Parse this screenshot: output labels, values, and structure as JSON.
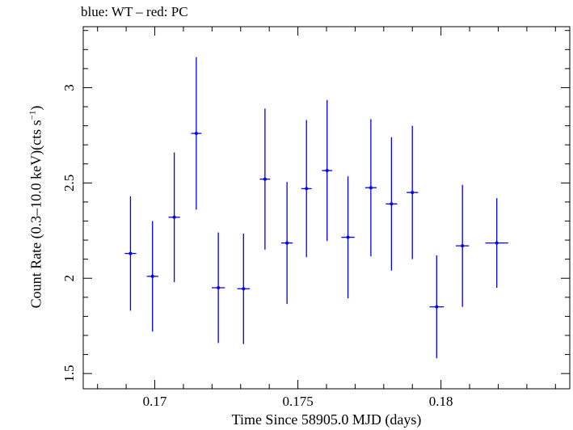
{
  "chart_data": {
    "type": "scatter",
    "title": "blue: WT – red: PC",
    "xlabel": "Time Since 58905.0 MJD (days)",
    "ylabel_main": "Count Rate (0.3–10.0 keV)(cts s",
    "ylabel_sup": "−1",
    "ylabel_end": ")",
    "xlim": [
      0.1675,
      0.1845
    ],
    "ylim": [
      1.42,
      3.32
    ],
    "xticks": [
      0.17,
      0.175,
      0.18
    ],
    "xtick_labels": [
      "0.17",
      "0.175",
      "0.18"
    ],
    "yticks": [
      1.5,
      2,
      2.5,
      3
    ],
    "ytick_labels": [
      "1.5",
      "2",
      "2.5",
      "3"
    ],
    "grid": false,
    "series": [
      {
        "color": "#0000ee",
        "points": [
          {
            "x": 0.16915,
            "xerr": 0.0002,
            "y": 2.13,
            "yerr": 0.3
          },
          {
            "x": 0.16992,
            "xerr": 0.0002,
            "y": 2.01,
            "yerr": 0.29
          },
          {
            "x": 0.17068,
            "xerr": 0.0002,
            "y": 2.32,
            "yerr": 0.34
          },
          {
            "x": 0.17145,
            "xerr": 0.00018,
            "y": 2.76,
            "yerr": 0.4
          },
          {
            "x": 0.17222,
            "xerr": 0.00023,
            "y": 1.95,
            "yerr": 0.29
          },
          {
            "x": 0.1731,
            "xerr": 0.00022,
            "y": 1.945,
            "yerr": 0.29
          },
          {
            "x": 0.17385,
            "xerr": 0.00018,
            "y": 2.52,
            "yerr": 0.37
          },
          {
            "x": 0.17462,
            "xerr": 0.0002,
            "y": 2.185,
            "yerr": 0.32
          },
          {
            "x": 0.1753,
            "xerr": 0.00018,
            "y": 2.47,
            "yerr": 0.36
          },
          {
            "x": 0.17602,
            "xerr": 0.00018,
            "y": 2.565,
            "yerr": 0.37
          },
          {
            "x": 0.17675,
            "xerr": 0.00023,
            "y": 2.215,
            "yerr": 0.32
          },
          {
            "x": 0.17755,
            "xerr": 0.0002,
            "y": 2.475,
            "yerr": 0.36
          },
          {
            "x": 0.17827,
            "xerr": 0.0002,
            "y": 2.39,
            "yerr": 0.35
          },
          {
            "x": 0.179,
            "xerr": 0.0002,
            "y": 2.45,
            "yerr": 0.35
          },
          {
            "x": 0.17985,
            "xerr": 0.00025,
            "y": 1.85,
            "yerr": 0.27
          },
          {
            "x": 0.18075,
            "xerr": 0.00023,
            "y": 2.17,
            "yerr": 0.32
          },
          {
            "x": 0.18195,
            "xerr": 0.0004,
            "y": 2.185,
            "yerr": 0.235
          }
        ]
      }
    ]
  }
}
